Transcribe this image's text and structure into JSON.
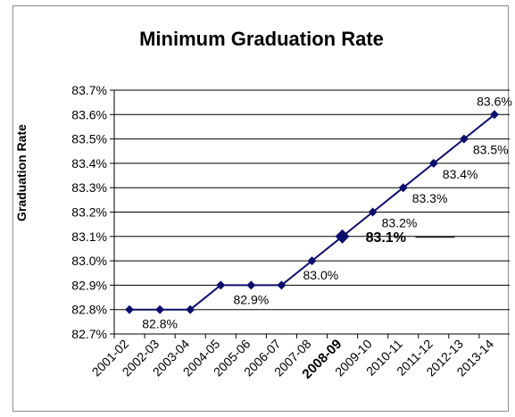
{
  "chart_data": {
    "type": "line",
    "title": "Minimum Graduation Rate",
    "xlabel": "",
    "ylabel": "Graduation Rate",
    "categories": [
      "2001-02",
      "2002-03",
      "2003-04",
      "2004-05",
      "2005-06",
      "2006-07",
      "2007-08",
      "2008-09",
      "2009-10",
      "2010-11",
      "2011-12",
      "2012-13",
      "2013-14"
    ],
    "series": [
      {
        "values": [
          82.8,
          82.8,
          82.8,
          82.9,
          82.9,
          82.9,
          83.0,
          83.1,
          83.2,
          83.3,
          83.4,
          83.5,
          83.6
        ]
      }
    ],
    "ylim": [
      82.7,
      83.7
    ],
    "yticks": [
      "82.7%",
      "82.8%",
      "82.9%",
      "83.0%",
      "83.1%",
      "83.2%",
      "83.3%",
      "83.4%",
      "83.5%",
      "83.6%",
      "83.7%"
    ],
    "grid": true,
    "highlight_category": "2008-09",
    "data_labels": [
      {
        "category": "2002-03",
        "text": "82.8%"
      },
      {
        "category": "2005-06",
        "text": "82.9%"
      },
      {
        "category": "2007-08",
        "text": "83.0%"
      },
      {
        "category": "2008-09",
        "text": "83.1%"
      },
      {
        "category": "2009-10",
        "text": "83.2%"
      },
      {
        "category": "2010-11",
        "text": "83.3%"
      },
      {
        "category": "2011-12",
        "text": "83.4%"
      },
      {
        "category": "2012-13",
        "text": "83.5%"
      },
      {
        "category": "2013-14",
        "text": "83.6%"
      }
    ],
    "colors": {
      "line": "#0d0d6b",
      "grid": "#000000",
      "text": "#000000"
    }
  }
}
